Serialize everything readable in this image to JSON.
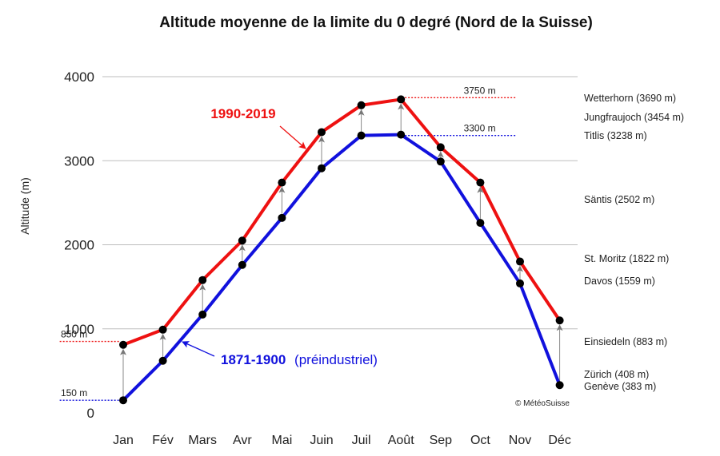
{
  "chart_data": {
    "type": "line",
    "title": "Altitude moyenne de la limite du 0 degré (Nord de la Suisse)",
    "ylabel": "Altitude (m)",
    "xlabel": "",
    "ylim": [
      0,
      4000
    ],
    "yticks": [
      0,
      1000,
      2000,
      3000,
      4000
    ],
    "grid": "horizontal",
    "categories": [
      "Jan",
      "Fév",
      "Mars",
      "Avr",
      "Mai",
      "Juin",
      "Juil",
      "Août",
      "Sep",
      "Oct",
      "Nov",
      "Déc"
    ],
    "series": [
      {
        "name": "1990-2019",
        "color": "#ee1111",
        "values": [
          810,
          990,
          1580,
          2050,
          2740,
          3340,
          3660,
          3730,
          3160,
          2740,
          1800,
          1100
        ]
      },
      {
        "name_years": "1871-1900",
        "name_suffix": "(préindustriel)",
        "color": "#1111dd",
        "values": [
          150,
          620,
          1170,
          1760,
          2320,
          2910,
          3300,
          3310,
          2990,
          2260,
          1540,
          330
        ]
      }
    ],
    "reference_lines": [
      {
        "label": "3750 m",
        "value": 3750,
        "color": "#ee1111",
        "x_from": 7.1,
        "x_to": 9.9,
        "label_side": "right"
      },
      {
        "label": "3300 m",
        "value": 3300,
        "color": "#1111dd",
        "x_from": 7.1,
        "x_to": 9.9,
        "label_side": "right"
      },
      {
        "label": "850 m",
        "value": 850,
        "color": "#ee1111",
        "x_from": -1.6,
        "x_to": -0.1,
        "label_side": "left"
      },
      {
        "label": "150 m",
        "value": 150,
        "color": "#1111dd",
        "x_from": -1.6,
        "x_to": -0.1,
        "label_side": "left"
      }
    ],
    "stations": [
      {
        "label": "Wetterhorn (3690 m)"
      },
      {
        "label": "Jungfraujoch (3454 m)"
      },
      {
        "label": "Titlis (3238 m)"
      },
      {
        "label": "Säntis (2502 m)"
      },
      {
        "label": "St. Moritz (1822 m)"
      },
      {
        "label": "Davos (1559 m)"
      },
      {
        "label": "Einsiedeln (883 m)"
      },
      {
        "label": "Zürich (408 m)"
      },
      {
        "label": "Genève (383 m)"
      }
    ],
    "copyright": "© MétéoSuisse"
  }
}
